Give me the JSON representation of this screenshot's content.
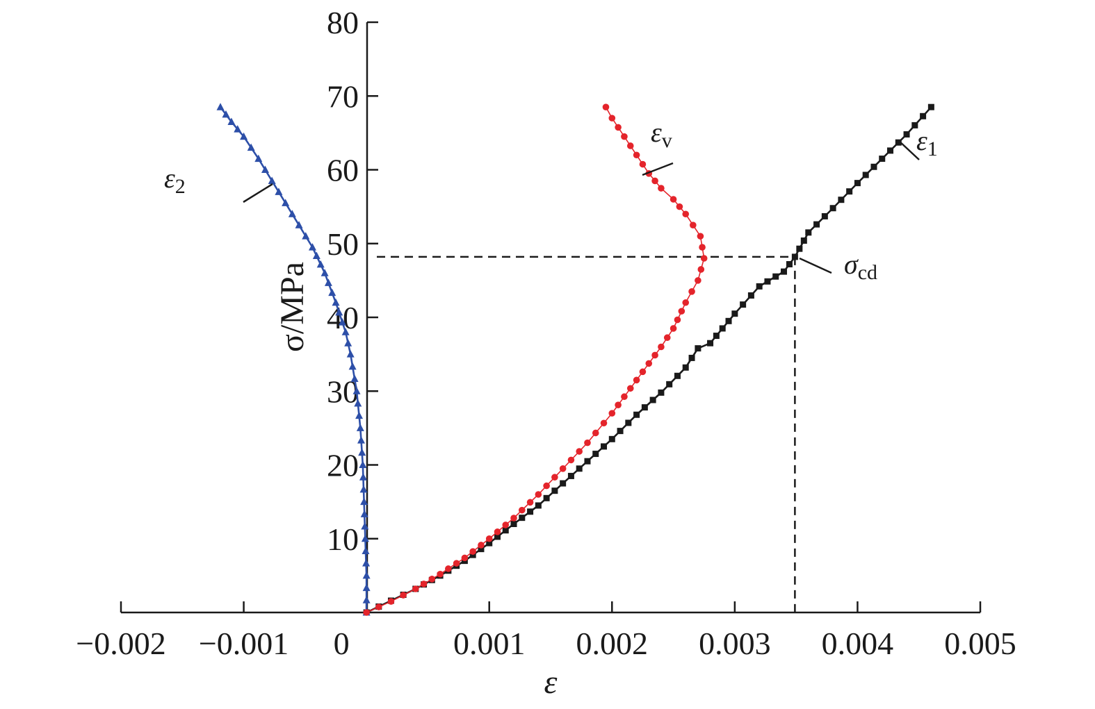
{
  "chart_data": {
    "type": "line",
    "xlabel": "ε",
    "ylabel": "σ/MPa",
    "xlim": [
      -0.002,
      0.005
    ],
    "ylim": [
      0,
      80
    ],
    "x_ticks": [
      -0.002,
      -0.001,
      0,
      0.001,
      0.002,
      0.003,
      0.004,
      0.005
    ],
    "x_tick_labels": [
      "−0.002",
      "−0.001",
      "0",
      "0.001",
      "0.002",
      "0.003",
      "0.004",
      "0.005"
    ],
    "y_ticks": [
      10,
      20,
      30,
      40,
      50,
      60,
      70,
      80
    ],
    "y_tick_labels": [
      "10",
      "20",
      "30",
      "40",
      "50",
      "60",
      "70",
      "80"
    ],
    "grid": false,
    "legend": "none",
    "colors": {
      "epsilon_1": "#1a1a1a",
      "epsilon_2": "#2d4fa8",
      "epsilon_v": "#e4242b",
      "axis": "#1a1a1a",
      "reference_line": "#1a1a1a"
    },
    "series": [
      {
        "key": "epsilon_1",
        "label_main": "ε",
        "label_sub": "1",
        "marker": "square",
        "x": [
          0,
          0.0002,
          0.0004,
          0.0006,
          0.0008,
          0.001,
          0.0012,
          0.0014,
          0.0016,
          0.0018,
          0.002,
          0.0022,
          0.0024,
          0.0026,
          0.0027,
          0.0028,
          0.0029,
          0.003,
          0.0032,
          0.0034,
          0.00349,
          0.0036,
          0.0038,
          0.004,
          0.0042,
          0.0044,
          0.0046
        ],
        "y": [
          0,
          1.6,
          3.2,
          5.0,
          7.0,
          9.4,
          12.0,
          14.5,
          17.5,
          20.5,
          23.5,
          26.8,
          29.8,
          33.2,
          35.8,
          36.5,
          38.5,
          40.5,
          44.2,
          46.2,
          48.2,
          51.5,
          54.8,
          58.2,
          61.5,
          64.8,
          68.5
        ]
      },
      {
        "key": "epsilon_2",
        "label_main": "ε",
        "label_sub": "2",
        "marker": "triangle",
        "x": [
          0,
          0,
          -1e-05,
          -2e-05,
          -3e-05,
          -5e-05,
          -8e-05,
          -0.00013,
          -0.00017,
          -0.00025,
          -0.00034,
          -0.00044,
          -0.00055,
          -0.00066,
          -0.00077,
          -0.00088,
          -0.001,
          -0.0011,
          -0.00119
        ],
        "y": [
          0,
          5,
          10,
          15,
          20,
          25,
          30,
          35,
          38,
          42,
          46,
          49.5,
          52.5,
          55.5,
          58.5,
          61.5,
          64.5,
          66.5,
          68.5
        ]
      },
      {
        "key": "epsilon_v",
        "label_main": "ε",
        "label_sub": "v",
        "marker": "circle",
        "x": [
          0,
          0.0002,
          0.0004,
          0.0006,
          0.0008,
          0.001,
          0.0012,
          0.0014,
          0.0016,
          0.0018,
          0.002,
          0.0022,
          0.0024,
          0.0025,
          0.0026,
          0.0027,
          0.00275,
          0.00272,
          0.0026,
          0.0025,
          0.0024,
          0.0023,
          0.0022,
          0.0021,
          0.002,
          0.00195
        ],
        "y": [
          0,
          1.5,
          3.2,
          5.2,
          7.4,
          10.0,
          12.8,
          16.0,
          19.5,
          23.0,
          27.0,
          31.5,
          36.0,
          38.5,
          42.0,
          45.0,
          48.0,
          51.0,
          54.0,
          56.0,
          57.5,
          59.5,
          62.0,
          64.5,
          67.0,
          68.5
        ]
      }
    ],
    "annotations": {
      "sigma_cd": {
        "label_main": "σ",
        "label_sub": "cd",
        "x": 0.00349,
        "y": 48.2
      }
    }
  }
}
